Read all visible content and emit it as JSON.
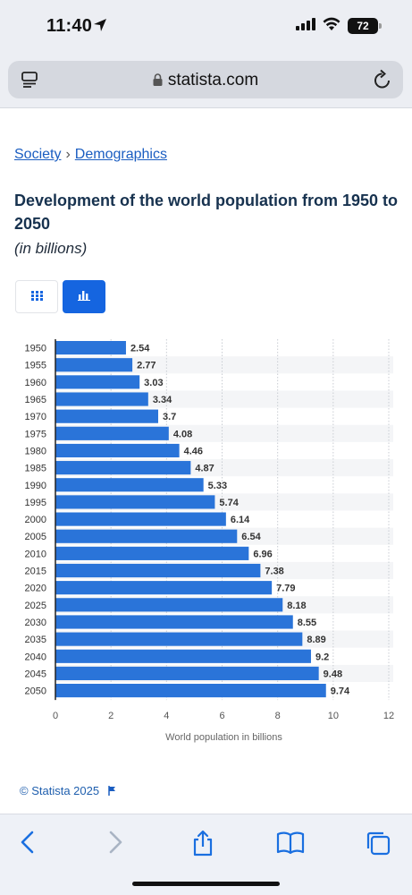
{
  "status_bar": {
    "time": "11:40",
    "battery": "72"
  },
  "browser": {
    "url": "statista.com"
  },
  "breadcrumb": {
    "items": [
      "Society",
      "Demographics"
    ],
    "separator": "›"
  },
  "page": {
    "title": "Development of the world population from 1950 to 2050",
    "subtitle": "(in billions)",
    "copyright": "© Statista 2025"
  },
  "view_toggle": {
    "options": [
      "table",
      "chart"
    ],
    "active": "chart"
  },
  "colors": {
    "bar": "#2a74d9",
    "accent": "#1565e0",
    "link": "#1a5dc1",
    "band": "#f4f5f7"
  },
  "chart_data": {
    "type": "bar",
    "orientation": "horizontal",
    "categories": [
      "1950",
      "1955",
      "1960",
      "1965",
      "1970",
      "1975",
      "1980",
      "1985",
      "1990",
      "1995",
      "2000",
      "2005",
      "2010",
      "2015",
      "2020",
      "2025",
      "2030",
      "2035",
      "2040",
      "2045",
      "2050"
    ],
    "values": [
      2.54,
      2.77,
      3.03,
      3.34,
      3.7,
      4.08,
      4.46,
      4.87,
      5.33,
      5.74,
      6.14,
      6.54,
      6.96,
      7.38,
      7.79,
      8.18,
      8.55,
      8.89,
      9.2,
      9.48,
      9.74
    ],
    "value_labels": [
      "2.54",
      "2.77",
      "3.03",
      "3.34",
      "3.7",
      "4.08",
      "4.46",
      "4.87",
      "5.33",
      "5.74",
      "6.14",
      "6.54",
      "6.96",
      "7.38",
      "7.79",
      "8.18",
      "8.55",
      "8.89",
      "9.2",
      "9.48",
      "9.74"
    ],
    "xlabel": "World population in billions",
    "ylabel": "",
    "xlim": [
      0,
      12
    ],
    "xticks": [
      0,
      2,
      4,
      6,
      8,
      10,
      12
    ],
    "grid": true
  }
}
